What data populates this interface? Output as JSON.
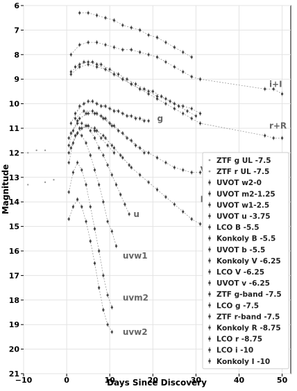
{
  "chart_data": {
    "type": "scatter",
    "title": "",
    "xlabel": "Days Since Discovery",
    "ylabel": "Magnitude",
    "xlim": [
      -10,
      52
    ],
    "ylim": [
      21,
      6
    ],
    "y_inverted": true,
    "grid": true,
    "x_ticks": [
      -10,
      0,
      10,
      20,
      30,
      40,
      50
    ],
    "y_ticks": [
      6,
      7,
      8,
      9,
      10,
      11,
      12,
      13,
      14,
      15,
      16,
      17,
      18,
      19,
      20,
      21
    ],
    "legend_position": "lower-right",
    "legend": [
      {
        "label": "ZTF g UL -7.5",
        "marker": "dot"
      },
      {
        "label": "ZTF r UL -7.5",
        "marker": "dot"
      },
      {
        "label": "UVOT w2-0",
        "marker": "errorbar"
      },
      {
        "label": "UVOT m2-1.25",
        "marker": "errorbar"
      },
      {
        "label": "UVOT w1-2.5",
        "marker": "errorbar"
      },
      {
        "label": "UVOT u -3.75",
        "marker": "errorbar"
      },
      {
        "label": "LCO B -5.5",
        "marker": "errorbar"
      },
      {
        "label": "Konkoly B -5.5",
        "marker": "errorbar"
      },
      {
        "label": "UVOT b -5.5",
        "marker": "errorbar"
      },
      {
        "label": "Konkoly V -6.25",
        "marker": "errorbar"
      },
      {
        "label": "LCO V -6.25",
        "marker": "errorbar"
      },
      {
        "label": "UVOT v -6.25",
        "marker": "errorbar"
      },
      {
        "label": "ZTF g-band -7.5",
        "marker": "errorbar"
      },
      {
        "label": "LCO g -7.5",
        "marker": "errorbar"
      },
      {
        "label": "ZTF r-band -7.5",
        "marker": "errorbar"
      },
      {
        "label": "Konkoly R -8.75",
        "marker": "errorbar"
      },
      {
        "label": "LCO r -8.75",
        "marker": "errorbar"
      },
      {
        "label": "LCO i -10",
        "marker": "errorbar"
      },
      {
        "label": "Konkoly I -10",
        "marker": "errorbar"
      }
    ],
    "annotations": [
      {
        "text": "i+I",
        "x": 47,
        "y": 9.2
      },
      {
        "text": "r+R",
        "x": 47,
        "y": 10.9
      },
      {
        "text": "g",
        "x": 21,
        "y": 10.6
      },
      {
        "text": "V",
        "x": 31,
        "y": 12.7
      },
      {
        "text": "B",
        "x": 31,
        "y": 13.9
      },
      {
        "text": "u",
        "x": 15.5,
        "y": 14.5
      },
      {
        "text": "uvw1",
        "x": 13,
        "y": 16.2
      },
      {
        "text": "uvm2",
        "x": 13,
        "y": 17.9
      },
      {
        "text": "uvw2",
        "x": 13,
        "y": 19.3
      }
    ],
    "series": [
      {
        "name": "ZTF g UL -7.5",
        "x": [
          -9,
          -7,
          -5
        ],
        "y": [
          12.0,
          11.9,
          11.9
        ]
      },
      {
        "name": "ZTF r UL -7.5",
        "x": [
          -9,
          -5,
          -3
        ],
        "y": [
          13.3,
          13.2,
          13.1
        ]
      },
      {
        "name": "UVOT w2-0",
        "x": [
          0.5,
          1.5,
          2.5,
          3.5,
          4.5,
          5.5,
          6.5,
          7.5,
          8.5,
          9.5,
          10.5
        ],
        "y": [
          14.7,
          14.2,
          13.9,
          14.2,
          14.8,
          15.6,
          16.5,
          17.5,
          18.4,
          19.0,
          19.3
        ]
      },
      {
        "name": "UVOT m2-1.25",
        "x": [
          0.5,
          1.5,
          2.5,
          3.5,
          4.5,
          5.5,
          6.5,
          7.5,
          8.5,
          9.5,
          10.5
        ],
        "y": [
          13.6,
          12.8,
          12.4,
          12.7,
          13.3,
          14.2,
          15.1,
          16.0,
          17.0,
          17.8,
          18.3
        ]
      },
      {
        "name": "UVOT w1-2.5",
        "x": [
          0.5,
          1.5,
          2.5,
          3.5,
          4.5,
          5.5,
          6.5,
          7.5,
          8.5,
          9.5,
          10.5,
          11.5
        ],
        "y": [
          12.4,
          11.6,
          11.2,
          11.3,
          11.6,
          12.1,
          12.7,
          13.3,
          14.0,
          14.8,
          15.2,
          15.8
        ]
      },
      {
        "name": "UVOT u -3.75",
        "x": [
          0.5,
          1.5,
          2.5,
          3.5,
          4.5,
          5.5,
          6.5,
          7.5,
          8.5,
          9.5,
          10.5,
          11.5,
          12.5,
          13.5,
          14.5
        ],
        "y": [
          11.7,
          11.1,
          10.8,
          10.8,
          10.9,
          11.1,
          11.4,
          11.8,
          12.1,
          12.5,
          12.9,
          13.3,
          13.7,
          14.1,
          14.5
        ]
      },
      {
        "name": "LCO B -5.5",
        "x": [
          1.0,
          3.0,
          5.0,
          7.0,
          9.0,
          11.0,
          13.0,
          15.0,
          17.0,
          19.0,
          21.0,
          23.0,
          25.0,
          27.0,
          29.0,
          31.0
        ],
        "y": [
          11.8,
          11.0,
          10.9,
          11.1,
          11.4,
          11.8,
          12.2,
          12.6,
          12.9,
          13.2,
          13.5,
          13.8,
          14.1,
          14.4,
          14.7,
          14.9
        ]
      },
      {
        "name": "Konkoly B -5.5",
        "x": [
          2.5,
          4.5,
          6.5,
          8.5,
          10.5,
          12.5,
          14.5
        ],
        "y": [
          11.2,
          10.9,
          11.0,
          11.3,
          11.7,
          12.1,
          12.5
        ]
      },
      {
        "name": "UVOT b -5.5",
        "x": [
          0.5,
          2.0,
          3.5,
          5.0,
          6.5,
          8.0,
          9.5,
          11.0
        ],
        "y": [
          12.0,
          11.3,
          11.0,
          10.9,
          11.1,
          11.4,
          11.7,
          12.0
        ]
      },
      {
        "name": "Konkoly V -6.25",
        "x": [
          2.0,
          4.0,
          6.0,
          8.0,
          10.0,
          12.0,
          14.0,
          16.0,
          18.0
        ],
        "y": [
          10.6,
          10.3,
          10.3,
          10.5,
          10.8,
          11.1,
          11.4,
          11.7,
          12.0
        ]
      },
      {
        "name": "LCO V -6.25",
        "x": [
          1.0,
          3.0,
          5.0,
          7.0,
          9.0,
          11.0,
          13.0,
          15.0,
          17.0,
          19.0,
          21.0,
          23.0,
          25.0,
          27.0,
          29.0,
          31.0
        ],
        "y": [
          11.2,
          10.6,
          10.4,
          10.4,
          10.6,
          10.9,
          11.2,
          11.5,
          11.8,
          12.0,
          12.2,
          12.4,
          12.6,
          12.7,
          12.8,
          12.8
        ]
      },
      {
        "name": "UVOT v -6.25",
        "x": [
          0.5,
          2.5,
          4.5,
          6.5,
          8.5,
          10.5
        ],
        "y": [
          11.4,
          10.7,
          10.4,
          10.4,
          10.6,
          10.9
        ]
      },
      {
        "name": "ZTF g-band -7.5",
        "x": [
          1.0,
          3.0,
          5.0,
          7.0,
          9.0,
          11.0,
          13.0,
          15.0,
          17.0,
          19.0
        ],
        "y": [
          10.8,
          10.1,
          9.9,
          10.0,
          10.1,
          10.3,
          10.4,
          10.5,
          10.6,
          10.7
        ]
      },
      {
        "name": "LCO g -7.5",
        "x": [
          2.0,
          4.0,
          6.0,
          8.0,
          10.0,
          12.0,
          14.0,
          16.0,
          18.0
        ],
        "y": [
          10.4,
          10.0,
          9.9,
          10.1,
          10.2,
          10.3,
          10.5,
          10.6,
          10.7
        ]
      },
      {
        "name": "ZTF r-band -7.5",
        "x": [
          1.0,
          3.0,
          5.0,
          7.0,
          9.0,
          11.0,
          13.0,
          15.0,
          17.0,
          19.0,
          21.0,
          23.0,
          25.0,
          27.0,
          29.0,
          31.0
        ],
        "y": [
          8.8,
          8.5,
          8.4,
          8.5,
          8.6,
          8.8,
          9.0,
          9.2,
          9.4,
          9.5,
          9.7,
          9.8,
          10.0,
          10.1,
          10.2,
          10.4
        ]
      },
      {
        "name": "Konkoly R -8.75",
        "x": [
          2.0,
          4.0,
          6.0,
          8.0,
          10.0,
          12.0,
          14.0,
          16.0,
          18.0,
          20.0,
          22.0,
          24.0,
          26.0,
          28.0,
          30.0
        ],
        "y": [
          8.5,
          8.3,
          8.3,
          8.4,
          8.6,
          8.8,
          9.0,
          9.2,
          9.4,
          9.5,
          9.7,
          9.9,
          10.1,
          10.3,
          10.5
        ]
      },
      {
        "name": "LCO r -8.75",
        "x": [
          1.0,
          3.0,
          5.0,
          7.0,
          9.0,
          11.0,
          13.0,
          15.0,
          17.0,
          19.0,
          21.0,
          23.0,
          25.0,
          27.0,
          29.0,
          31.0,
          46.0,
          48.0,
          50.0
        ],
        "y": [
          8.7,
          8.4,
          8.3,
          8.4,
          8.6,
          8.8,
          9.0,
          9.2,
          9.4,
          9.6,
          9.8,
          10.0,
          10.2,
          10.4,
          10.6,
          10.8,
          11.3,
          11.4,
          11.4
        ]
      },
      {
        "name": "LCO i -10",
        "x": [
          1.0,
          3.0,
          5.0,
          7.0,
          9.0,
          11.0,
          13.0,
          15.0,
          17.0,
          19.0,
          21.0,
          23.0,
          25.0,
          27.0,
          29.0,
          31.0,
          46.0,
          48.0,
          50.0
        ],
        "y": [
          8.0,
          7.6,
          7.5,
          7.5,
          7.6,
          7.7,
          7.8,
          7.8,
          7.9,
          8.0,
          8.1,
          8.3,
          8.5,
          8.7,
          8.9,
          9.0,
          9.4,
          9.4,
          9.6
        ]
      },
      {
        "name": "Konkoly I -10",
        "x": [
          3.0,
          5.0,
          7.0,
          9.0,
          11.0,
          13.0,
          15.0,
          17.0,
          19.0,
          21.0,
          23.0,
          25.0,
          27.0,
          29.0
        ],
        "y": [
          6.3,
          6.3,
          6.4,
          6.5,
          6.6,
          6.8,
          6.9,
          7.0,
          7.2,
          7.3,
          7.5,
          7.7,
          7.9,
          8.1
        ]
      }
    ]
  }
}
